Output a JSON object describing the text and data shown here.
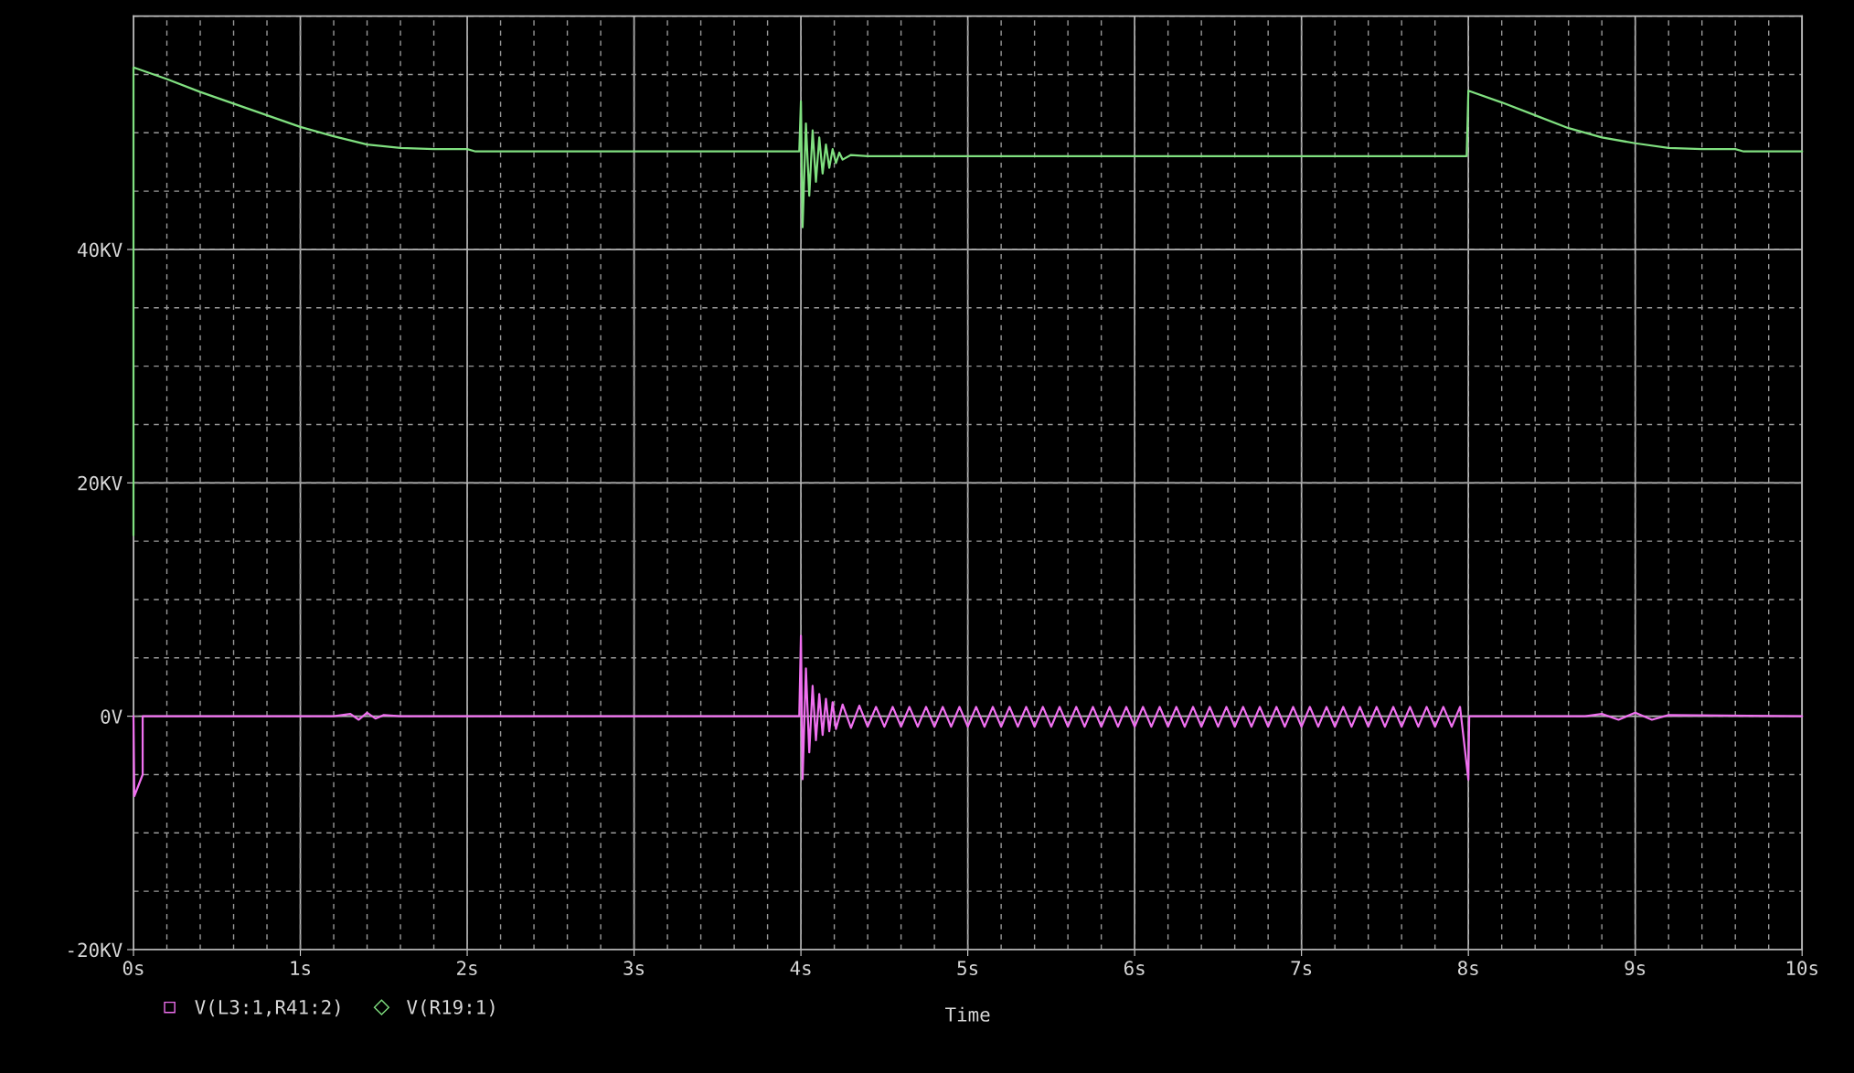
{
  "chart_data": {
    "type": "line",
    "xlabel": "Time",
    "xlim": [
      0,
      10
    ],
    "ylim": [
      -20,
      60
    ],
    "xticks": [
      {
        "value": 0,
        "label": "0s"
      },
      {
        "value": 1,
        "label": "1s"
      },
      {
        "value": 2,
        "label": "2s"
      },
      {
        "value": 3,
        "label": "3s"
      },
      {
        "value": 4,
        "label": "4s"
      },
      {
        "value": 5,
        "label": "5s"
      },
      {
        "value": 6,
        "label": "6s"
      },
      {
        "value": 7,
        "label": "7s"
      },
      {
        "value": 8,
        "label": "8s"
      },
      {
        "value": 9,
        "label": "9s"
      },
      {
        "value": 10,
        "label": "10s"
      }
    ],
    "yticks": [
      {
        "value": -20,
        "label": "-20KV"
      },
      {
        "value": 0,
        "label": "0V"
      },
      {
        "value": 20,
        "label": "20KV"
      },
      {
        "value": 40,
        "label": "40KV"
      }
    ],
    "grid": true,
    "legend": "bottom left",
    "series": [
      {
        "name": "V(L3:1,R41:2)",
        "color": "#f070f0",
        "x": [
          0,
          0.005,
          0.055,
          0.055,
          1.2,
          1.3,
          1.35,
          1.4,
          1.45,
          1.5,
          1.6,
          3.99,
          4.0,
          4.01,
          4.03,
          4.05,
          4.07,
          4.09,
          4.11,
          4.13,
          4.15,
          4.17,
          4.19,
          4.21,
          4.25,
          4.3,
          4.35,
          4.4,
          4.45,
          4.5,
          4.55,
          4.6,
          4.65,
          4.7,
          4.75,
          4.8,
          4.85,
          4.9,
          4.95,
          5.0,
          5.05,
          5.1,
          5.15,
          5.2,
          5.25,
          5.3,
          5.35,
          5.4,
          5.45,
          5.5,
          5.55,
          5.6,
          5.65,
          5.7,
          5.75,
          5.8,
          5.85,
          5.9,
          5.95,
          6.0,
          6.05,
          6.1,
          6.15,
          6.2,
          6.25,
          6.3,
          6.35,
          6.4,
          6.45,
          6.5,
          6.55,
          6.6,
          6.65,
          6.7,
          6.75,
          6.8,
          6.85,
          6.9,
          6.95,
          7.0,
          7.05,
          7.1,
          7.15,
          7.2,
          7.25,
          7.3,
          7.35,
          7.4,
          7.45,
          7.5,
          7.55,
          7.6,
          7.65,
          7.7,
          7.75,
          7.8,
          7.85,
          7.9,
          7.95,
          8.0,
          8.005,
          8.7,
          8.8,
          8.9,
          9.0,
          9.1,
          9.2,
          10
        ],
        "values": [
          0,
          -6.85,
          -5,
          0,
          0,
          0.2,
          -0.3,
          0.3,
          -0.2,
          0.1,
          0,
          0,
          6.9,
          -5.4,
          4.1,
          -3.1,
          2.6,
          -2.05,
          1.9,
          -1.6,
          1.5,
          -1.3,
          1.2,
          -1.1,
          1.0,
          -1.0,
          0.9,
          -0.9,
          0.8,
          -0.9,
          0.8,
          -0.9,
          0.8,
          -0.9,
          0.8,
          -0.9,
          0.8,
          -0.9,
          0.8,
          -0.9,
          0.8,
          -0.9,
          0.8,
          -0.9,
          0.8,
          -0.9,
          0.8,
          -0.9,
          0.8,
          -0.9,
          0.8,
          -0.9,
          0.8,
          -0.9,
          0.8,
          -0.9,
          0.8,
          -0.9,
          0.8,
          -0.9,
          0.8,
          -0.9,
          0.8,
          -0.9,
          0.8,
          -0.9,
          0.8,
          -0.9,
          0.8,
          -0.9,
          0.8,
          -0.9,
          0.8,
          -0.9,
          0.8,
          -0.9,
          0.8,
          -0.9,
          0.8,
          -0.9,
          0.8,
          -0.9,
          0.8,
          -0.9,
          0.8,
          -0.9,
          0.8,
          -0.9,
          0.8,
          -0.9,
          0.8,
          -0.9,
          0.8,
          -0.9,
          0.8,
          -0.9,
          0.8,
          -0.9,
          0.8,
          -5.45,
          0,
          0,
          0.2,
          -0.3,
          0.3,
          -0.3,
          0.1,
          0
        ]
      },
      {
        "name": "V(R19:1)",
        "color": "#80e080",
        "x": [
          0,
          0,
          0.2,
          0.4,
          0.6,
          0.8,
          1.0,
          1.2,
          1.4,
          1.6,
          1.8,
          2.0,
          2.05,
          3.99,
          4.0,
          4.01,
          4.03,
          4.05,
          4.07,
          4.09,
          4.11,
          4.13,
          4.15,
          4.17,
          4.19,
          4.21,
          4.23,
          4.25,
          4.3,
          4.4,
          7.99,
          8.0,
          8.2,
          8.4,
          8.6,
          8.8,
          9.0,
          9.2,
          9.4,
          9.6,
          9.65,
          10
        ],
        "values": [
          15.5,
          55.6,
          54.6,
          53.5,
          52.5,
          51.5,
          50.5,
          49.7,
          49.0,
          48.7,
          48.6,
          48.6,
          48.4,
          48.4,
          52.7,
          41.9,
          50.8,
          44.6,
          50.2,
          45.8,
          49.6,
          46.5,
          49.0,
          47.0,
          48.6,
          47.4,
          48.3,
          47.7,
          48.1,
          48.0,
          48.0,
          53.6,
          52.6,
          51.5,
          50.4,
          49.6,
          49.1,
          48.7,
          48.6,
          48.6,
          48.4,
          48.4
        ]
      }
    ]
  }
}
